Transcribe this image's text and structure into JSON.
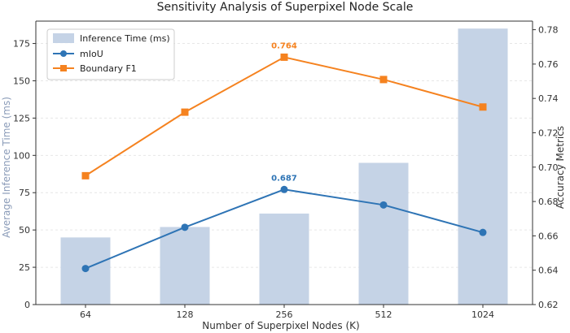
{
  "chart_data": {
    "type": "bar+line",
    "title": "Sensitivity Analysis of Superpixel Node Scale",
    "xlabel": "Number of Superpixel Nodes (K)",
    "ylabel_left": "Average Inference Time (ms)",
    "ylabel_right": "Accuracy Metrics",
    "categories": [
      "64",
      "128",
      "256",
      "512",
      "1024"
    ],
    "ylim_left": [
      0,
      190
    ],
    "yticks_left": [
      0,
      25,
      50,
      75,
      100,
      125,
      150,
      175
    ],
    "ylim_right": [
      0.62,
      0.785
    ],
    "yticks_right": [
      0.62,
      0.64,
      0.66,
      0.68,
      0.7,
      0.72,
      0.74,
      0.76,
      0.78
    ],
    "bars": {
      "name": "Inference Time (ms)",
      "axis": "left",
      "color": "#c5d3e6",
      "values": [
        45,
        52,
        61,
        95,
        185
      ]
    },
    "series": [
      {
        "name": "mIoU",
        "axis": "right",
        "color": "#2e74b5",
        "marker": "circle",
        "values": [
          0.641,
          0.665,
          0.687,
          0.678,
          0.662
        ]
      },
      {
        "name": "Boundary F1",
        "axis": "right",
        "color": "#f5821f",
        "marker": "square",
        "values": [
          0.695,
          0.732,
          0.764,
          0.751,
          0.735
        ]
      }
    ],
    "annotations": [
      {
        "series": "mIoU",
        "category": "256",
        "text": "0.687",
        "color": "#2e74b5"
      },
      {
        "series": "Boundary F1",
        "category": "256",
        "text": "0.764",
        "color": "#f5821f"
      }
    ],
    "grid": true,
    "legend_position": "top-left",
    "left_axis_label_color": "#8a9bb8"
  }
}
